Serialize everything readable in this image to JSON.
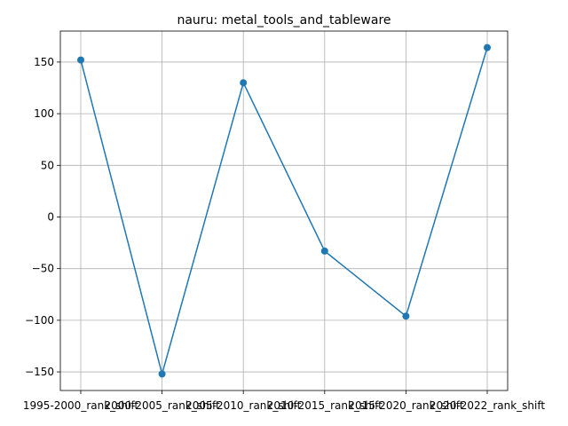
{
  "chart_data": {
    "type": "line",
    "title": "nauru: metal_tools_and_tableware",
    "xlabel": "",
    "ylabel": "",
    "categories": [
      "1995-2000_rank_shift",
      "2000-2005_rank_shift",
      "2005-2010_rank_shift",
      "2010-2015_rank_shift",
      "2015-2020_rank_shift",
      "2020-2022_rank_shift"
    ],
    "series": [
      {
        "values": [
          152,
          -152,
          130,
          -33,
          -96,
          164
        ]
      }
    ],
    "ylim": [
      -168,
      180
    ],
    "yticks": [
      -150,
      -100,
      -50,
      0,
      50,
      100,
      150
    ],
    "ytick_labels": [
      "−150",
      "−100",
      "−50",
      "0",
      "50",
      "100",
      "150"
    ],
    "grid": true,
    "markers": true,
    "color": "#1f77b4"
  }
}
